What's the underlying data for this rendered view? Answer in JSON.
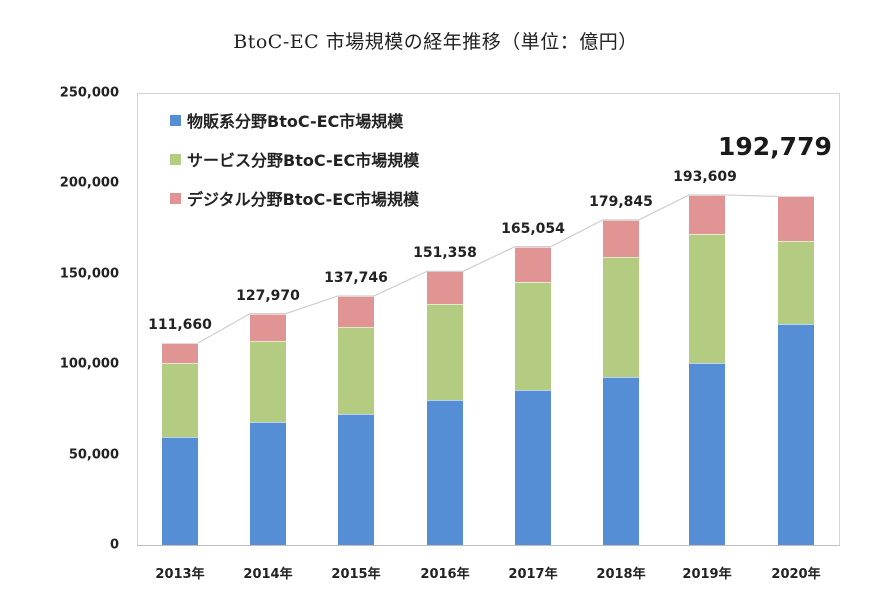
{
  "title": "BtoC-EC 市場規模の経年推移（単位：億円）",
  "colors": {
    "goods": "#558ed5",
    "services": "#b3cc82",
    "digital": "#e09494",
    "trend_line": "#cfcfcf"
  },
  "legend": [
    {
      "label": "物販系分野BtoC-EC市場規模",
      "color": "#558ed5"
    },
    {
      "label": "サービス分野BtoC-EC市場規模",
      "color": "#b3cc82"
    },
    {
      "label": "デジタル分野BtoC-EC市場規模",
      "color": "#e09494"
    }
  ],
  "y_ticks": [
    "250,000",
    "200,000",
    "150,000",
    "100,000",
    "50,000",
    "0"
  ],
  "highlight_label": "192,779",
  "chart_data": {
    "type": "bar",
    "stacked": true,
    "title": "BtoC-EC 市場規模の経年推移（単位：億円）",
    "xlabel": "",
    "ylabel": "億円",
    "ylim": [
      0,
      250000
    ],
    "y_ticks": [
      0,
      50000,
      100000,
      150000,
      200000,
      250000
    ],
    "grid": false,
    "legend_position": "top-left inside",
    "categories": [
      "2013年",
      "2014年",
      "2015年",
      "2016年",
      "2017年",
      "2018年",
      "2019年",
      "2020年"
    ],
    "series": [
      {
        "name": "物販系分野BtoC-EC市場規模",
        "color": "#558ed5",
        "values": [
          59931,
          68043,
          72398,
          80043,
          86008,
          92992,
          100515,
          122333
        ]
      },
      {
        "name": "サービス分野BtoC-EC市場規模",
        "color": "#b3cc82",
        "values": [
          40700,
          44800,
          48200,
          53500,
          59700,
          66500,
          71700,
          45800
        ]
      },
      {
        "name": "デジタル分野BtoC-EC市場規模",
        "color": "#e09494",
        "values": [
          11029,
          15127,
          17148,
          17815,
          19346,
          20353,
          21393,
          24646
        ]
      }
    ],
    "totals": [
      111660,
      127970,
      137746,
      151358,
      165054,
      179845,
      193609,
      192779
    ],
    "total_labels": [
      "111,660",
      "127,970",
      "137,746",
      "151,358",
      "165,054",
      "179,845",
      "193,609",
      "192,779"
    ],
    "annotations": [
      {
        "text": "192,779",
        "target": "2020年",
        "style": "large bold"
      },
      {
        "text": "trend line connecting bar tops",
        "type": "line"
      }
    ]
  }
}
